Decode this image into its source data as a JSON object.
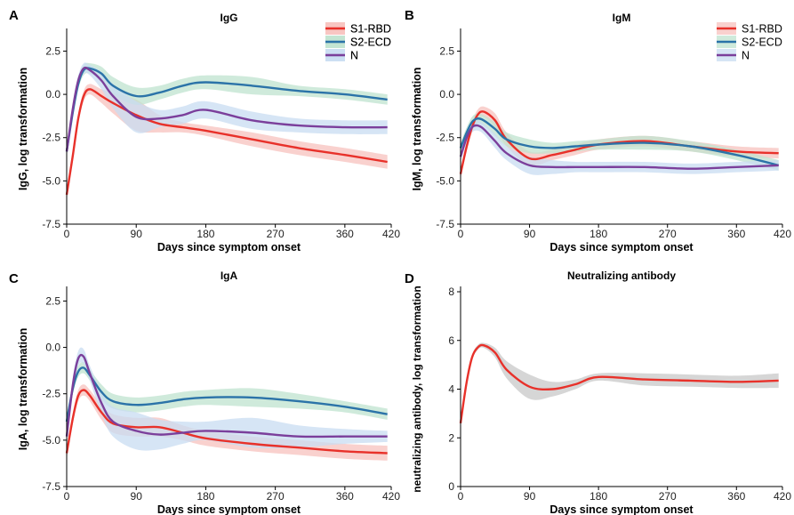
{
  "chart_data": [
    {
      "panel": "A",
      "type": "line",
      "title": "IgG",
      "xlabel": "Days since symptom onset",
      "ylabel": "IgG, log transformation",
      "xlim": [
        0,
        420
      ],
      "ylim": [
        -7.5,
        3.5
      ],
      "xticks": [
        "0",
        "90",
        "180",
        "270",
        "360",
        "420"
      ],
      "yticks": [
        "-7.5",
        "-5.0",
        "-2.5",
        "0.0",
        "2.5"
      ],
      "legend": "top-right",
      "grid": false,
      "series": [
        {
          "name": "S1-RBD",
          "color": "#e8312a",
          "band": "#f7c2bd",
          "x": [
            0,
            8,
            15,
            22,
            30,
            45,
            60,
            90,
            120,
            150,
            180,
            240,
            300,
            360,
            415
          ],
          "y": [
            -5.8,
            -3.5,
            -1.4,
            -0.1,
            0.3,
            -0.1,
            -0.5,
            -1.2,
            -1.7,
            -1.9,
            -2.1,
            -2.6,
            -3.1,
            -3.5,
            -3.9
          ],
          "band_width": [
            0.3,
            0.3,
            0.3,
            0.3,
            0.3,
            0.4,
            0.6,
            0.9,
            0.5,
            0.3,
            0.3,
            0.4,
            0.4,
            0.4,
            0.4
          ]
        },
        {
          "name": "S2-ECD",
          "color": "#2b73a8",
          "band": "#bfe3cf",
          "x": [
            0,
            8,
            15,
            22,
            30,
            45,
            60,
            90,
            120,
            150,
            180,
            240,
            300,
            360,
            415
          ],
          "y": [
            -3.3,
            -1.0,
            0.6,
            1.4,
            1.5,
            1.2,
            0.5,
            -0.1,
            0.1,
            0.5,
            0.7,
            0.5,
            0.2,
            0.0,
            -0.3
          ],
          "band_width": [
            0.3,
            0.3,
            0.3,
            0.3,
            0.3,
            0.4,
            0.5,
            0.5,
            0.4,
            0.4,
            0.4,
            0.5,
            0.3,
            0.3,
            0.3
          ]
        },
        {
          "name": "N",
          "color": "#7b3f9b",
          "band": "#c8dcf2",
          "x": [
            0,
            8,
            15,
            22,
            30,
            45,
            60,
            90,
            120,
            150,
            180,
            240,
            300,
            360,
            415
          ],
          "y": [
            -3.3,
            -0.8,
            0.8,
            1.5,
            1.4,
            0.8,
            -0.1,
            -1.3,
            -1.4,
            -1.2,
            -0.9,
            -1.5,
            -1.8,
            -1.9,
            -1.9
          ],
          "band_width": [
            0.3,
            0.3,
            0.3,
            0.3,
            0.3,
            0.5,
            0.7,
            0.9,
            0.5,
            0.5,
            0.5,
            0.5,
            0.4,
            0.4,
            0.4
          ]
        }
      ]
    },
    {
      "panel": "B",
      "type": "line",
      "title": "IgM",
      "xlabel": "Days since symptom onset",
      "ylabel": "IgM, log transformation",
      "xlim": [
        0,
        420
      ],
      "ylim": [
        -7.5,
        3.5
      ],
      "xticks": [
        "0",
        "90",
        "180",
        "270",
        "360",
        "420"
      ],
      "yticks": [
        "-7.5",
        "-5.0",
        "-2.5",
        "0.0",
        "2.5"
      ],
      "legend": "top-right",
      "grid": false,
      "series": [
        {
          "name": "S1-RBD",
          "color": "#e8312a",
          "band": "#f7c2bd",
          "x": [
            0,
            8,
            15,
            22,
            30,
            45,
            60,
            90,
            120,
            150,
            180,
            240,
            300,
            360,
            415
          ],
          "y": [
            -4.6,
            -3.0,
            -1.9,
            -1.2,
            -1.0,
            -1.5,
            -2.6,
            -3.7,
            -3.5,
            -3.2,
            -2.9,
            -2.7,
            -3.0,
            -3.3,
            -3.4
          ],
          "band_width": [
            0.3,
            0.3,
            0.3,
            0.3,
            0.3,
            0.4,
            0.4,
            0.4,
            0.3,
            0.3,
            0.3,
            0.3,
            0.3,
            0.3,
            0.3
          ]
        },
        {
          "name": "S2-ECD",
          "color": "#2b73a8",
          "band": "#bfe3cf",
          "x": [
            0,
            8,
            15,
            22,
            30,
            45,
            60,
            90,
            120,
            150,
            180,
            240,
            300,
            360,
            415
          ],
          "y": [
            -3.1,
            -2.2,
            -1.6,
            -1.4,
            -1.5,
            -2.0,
            -2.6,
            -3.0,
            -3.1,
            -3.0,
            -2.9,
            -2.8,
            -3.0,
            -3.5,
            -4.1
          ],
          "band_width": [
            0.3,
            0.3,
            0.3,
            0.3,
            0.3,
            0.4,
            0.4,
            0.4,
            0.3,
            0.3,
            0.3,
            0.4,
            0.3,
            0.3,
            0.3
          ]
        },
        {
          "name": "N",
          "color": "#7b3f9b",
          "band": "#c8dcf2",
          "x": [
            0,
            8,
            15,
            22,
            30,
            45,
            60,
            90,
            120,
            150,
            180,
            240,
            300,
            360,
            415
          ],
          "y": [
            -3.6,
            -2.5,
            -1.9,
            -1.8,
            -2.0,
            -2.7,
            -3.4,
            -4.1,
            -4.2,
            -4.2,
            -4.2,
            -4.2,
            -4.3,
            -4.2,
            -4.1
          ],
          "band_width": [
            0.3,
            0.3,
            0.3,
            0.3,
            0.3,
            0.4,
            0.4,
            0.5,
            0.4,
            0.3,
            0.3,
            0.3,
            0.3,
            0.3,
            0.3
          ]
        }
      ]
    },
    {
      "panel": "C",
      "type": "line",
      "title": "IgA",
      "xlabel": "Days since symptom onset",
      "ylabel": "IgA, log transformation",
      "xlim": [
        0,
        420
      ],
      "ylim": [
        -7.5,
        3.0
      ],
      "xticks": [
        "0",
        "90",
        "180",
        "270",
        "360",
        "420"
      ],
      "yticks": [
        "-7.5",
        "-5.0",
        "-2.5",
        "0.0",
        "2.5"
      ],
      "legend": "top-right",
      "grid": false,
      "series": [
        {
          "name": "S1-RBD",
          "color": "#e8312a",
          "band": "#f7c2bd",
          "x": [
            0,
            8,
            15,
            22,
            30,
            45,
            60,
            90,
            120,
            150,
            180,
            240,
            300,
            360,
            415
          ],
          "y": [
            -5.7,
            -3.8,
            -2.6,
            -2.3,
            -2.6,
            -3.5,
            -4.1,
            -4.3,
            -4.3,
            -4.6,
            -4.9,
            -5.2,
            -5.4,
            -5.6,
            -5.7
          ],
          "band_width": [
            0.3,
            0.3,
            0.3,
            0.3,
            0.3,
            0.4,
            0.5,
            0.5,
            0.5,
            0.4,
            0.4,
            0.4,
            0.4,
            0.4,
            0.4
          ]
        },
        {
          "name": "S2-ECD",
          "color": "#2b73a8",
          "band": "#bfe3cf",
          "x": [
            0,
            8,
            15,
            22,
            30,
            45,
            60,
            90,
            120,
            150,
            180,
            240,
            300,
            360,
            415
          ],
          "y": [
            -4.0,
            -2.2,
            -1.3,
            -1.1,
            -1.5,
            -2.4,
            -2.9,
            -3.1,
            -3.0,
            -2.8,
            -2.7,
            -2.7,
            -2.9,
            -3.2,
            -3.6
          ],
          "band_width": [
            0.3,
            0.3,
            0.3,
            0.3,
            0.3,
            0.4,
            0.4,
            0.4,
            0.4,
            0.4,
            0.4,
            0.5,
            0.4,
            0.3,
            0.3
          ]
        },
        {
          "name": "N",
          "color": "#7b3f9b",
          "band": "#c8dcf2",
          "x": [
            0,
            8,
            15,
            22,
            30,
            45,
            60,
            90,
            120,
            150,
            180,
            240,
            300,
            360,
            415
          ],
          "y": [
            -4.8,
            -2.0,
            -0.6,
            -0.5,
            -1.4,
            -3.0,
            -4.0,
            -4.5,
            -4.7,
            -4.6,
            -4.5,
            -4.6,
            -4.8,
            -4.8,
            -4.8
          ],
          "band_width": [
            0.3,
            0.4,
            0.4,
            0.4,
            0.4,
            0.6,
            0.8,
            1.0,
            0.8,
            0.6,
            0.5,
            0.8,
            0.6,
            0.4,
            0.3
          ]
        }
      ]
    },
    {
      "panel": "D",
      "type": "line",
      "title": "Neutralizing antibody",
      "xlabel": "Days since symptom onset",
      "ylabel": "neutralizing antibody, log transformation",
      "xlim": [
        0,
        420
      ],
      "ylim": [
        0,
        8
      ],
      "xticks": [
        "0",
        "90",
        "180",
        "270",
        "360",
        "420"
      ],
      "yticks": [
        "0",
        "2",
        "4",
        "6",
        "8"
      ],
      "legend": "none",
      "grid": false,
      "series": [
        {
          "name": "",
          "color": "#e8312a",
          "band": "#c8c8c8",
          "x": [
            0,
            8,
            15,
            22,
            30,
            45,
            60,
            90,
            120,
            150,
            180,
            240,
            300,
            360,
            415
          ],
          "y": [
            2.6,
            4.3,
            5.3,
            5.7,
            5.8,
            5.5,
            4.8,
            4.1,
            4.0,
            4.2,
            4.5,
            4.4,
            4.35,
            4.3,
            4.35
          ],
          "band_width": [
            0.1,
            0.1,
            0.1,
            0.1,
            0.1,
            0.2,
            0.35,
            0.5,
            0.3,
            0.2,
            0.15,
            0.25,
            0.25,
            0.25,
            0.3
          ]
        }
      ]
    }
  ]
}
